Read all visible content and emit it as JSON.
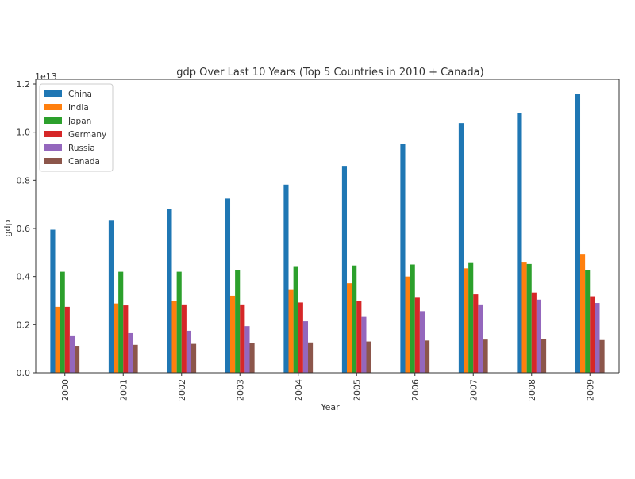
{
  "chart_data": {
    "type": "bar",
    "title": "gdp Over Last 10 Years (Top 5 Countries in 2010 + Canada)",
    "xlabel": "Year",
    "ylabel": "gdp",
    "offset_label": "1e13",
    "ylim": [
      0,
      1.2
    ],
    "yticks": [
      "0.0",
      "0.2",
      "0.4",
      "0.6",
      "0.8",
      "1.0",
      "1.2"
    ],
    "categories": [
      "2000",
      "2001",
      "2002",
      "2003",
      "2004",
      "2005",
      "2006",
      "2007",
      "2008",
      "2009"
    ],
    "legend_position": "top-left",
    "grid": false,
    "series": [
      {
        "name": "China",
        "color": "#1f77b4",
        "values": [
          0.595,
          0.632,
          0.68,
          0.724,
          0.782,
          0.86,
          0.95,
          1.038,
          1.079,
          1.159
        ]
      },
      {
        "name": "India",
        "color": "#ff7f0e",
        "values": [
          0.274,
          0.288,
          0.298,
          0.32,
          0.344,
          0.372,
          0.4,
          0.434,
          0.458,
          0.494
        ]
      },
      {
        "name": "Japan",
        "color": "#2ca02c",
        "values": [
          0.42,
          0.42,
          0.42,
          0.428,
          0.44,
          0.446,
          0.45,
          0.456,
          0.452,
          0.428
        ]
      },
      {
        "name": "Germany",
        "color": "#d62728",
        "values": [
          0.274,
          0.28,
          0.284,
          0.284,
          0.292,
          0.298,
          0.312,
          0.326,
          0.334,
          0.318
        ]
      },
      {
        "name": "Russia",
        "color": "#9467bd",
        "values": [
          0.152,
          0.165,
          0.175,
          0.194,
          0.214,
          0.232,
          0.256,
          0.284,
          0.304,
          0.29
        ]
      },
      {
        "name": "Canada",
        "color": "#8c564b",
        "values": [
          0.112,
          0.116,
          0.12,
          0.122,
          0.126,
          0.13,
          0.134,
          0.138,
          0.14,
          0.136
        ]
      }
    ]
  }
}
